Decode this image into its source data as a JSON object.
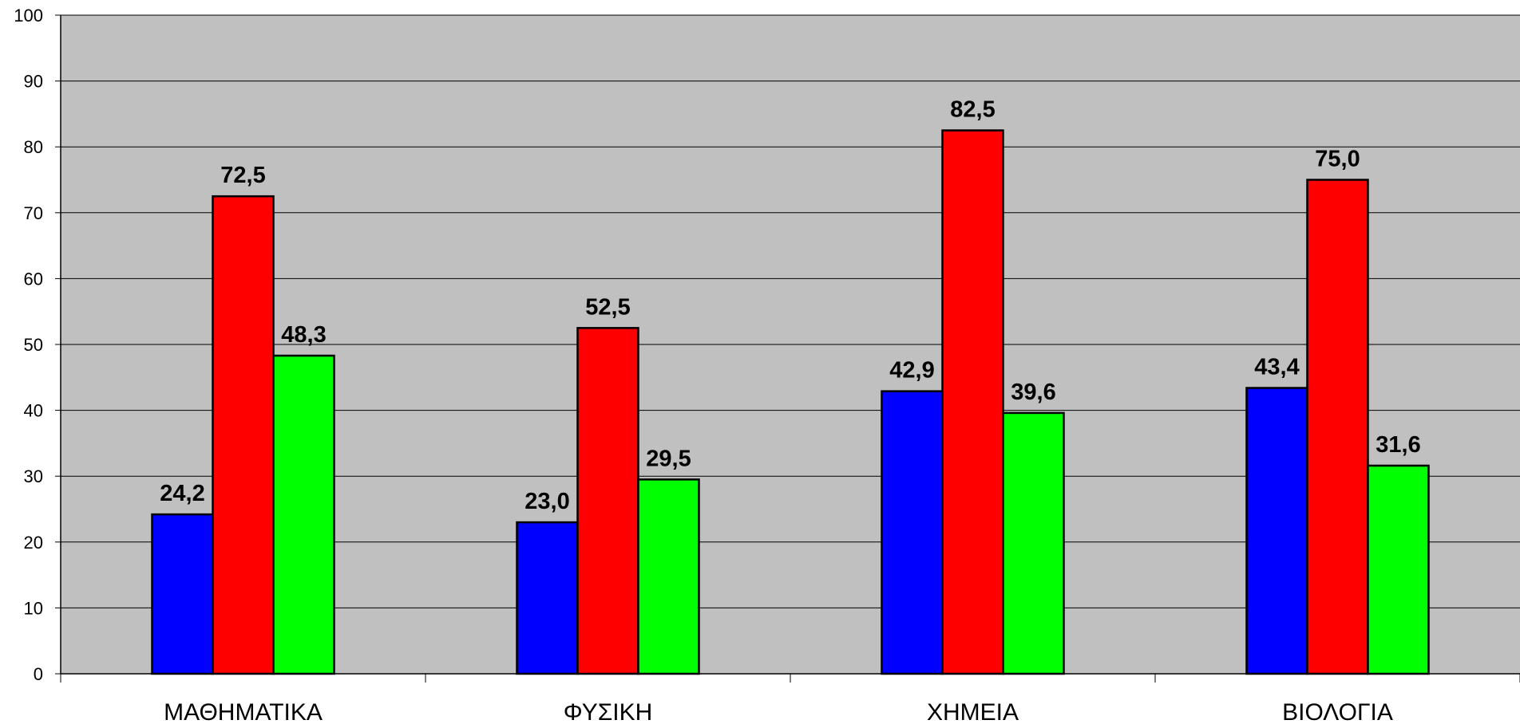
{
  "chart_data": {
    "type": "bar",
    "categories": [
      "ΜΑΘΗΜΑΤΙΚΑ",
      "ΦΥΣΙΚΗ",
      "ΧΗΜΕΙΑ",
      "ΒΙΟΛΟΓΙΑ"
    ],
    "series": [
      {
        "values": [
          24.2,
          23.0,
          42.9,
          43.4
        ],
        "labels": [
          "24,2",
          "23,0",
          "42,9",
          "43,4"
        ],
        "color": "#0000ff"
      },
      {
        "values": [
          72.5,
          52.5,
          82.5,
          75.0
        ],
        "labels": [
          "72,5",
          "52,5",
          "82,5",
          "75,0"
        ],
        "color": "#ff0000"
      },
      {
        "values": [
          48.3,
          29.5,
          39.6,
          31.6
        ],
        "labels": [
          "48,3",
          "29,5",
          "39,6",
          "31,6"
        ],
        "color": "#00ff00"
      }
    ],
    "ylim": [
      0,
      100
    ],
    "yticks": [
      "0",
      "10",
      "20",
      "30",
      "40",
      "50",
      "60",
      "70",
      "80",
      "90",
      "100"
    ],
    "grid": true,
    "plot_background": "#c0c0c0",
    "title": "",
    "xlabel": "",
    "ylabel": ""
  }
}
